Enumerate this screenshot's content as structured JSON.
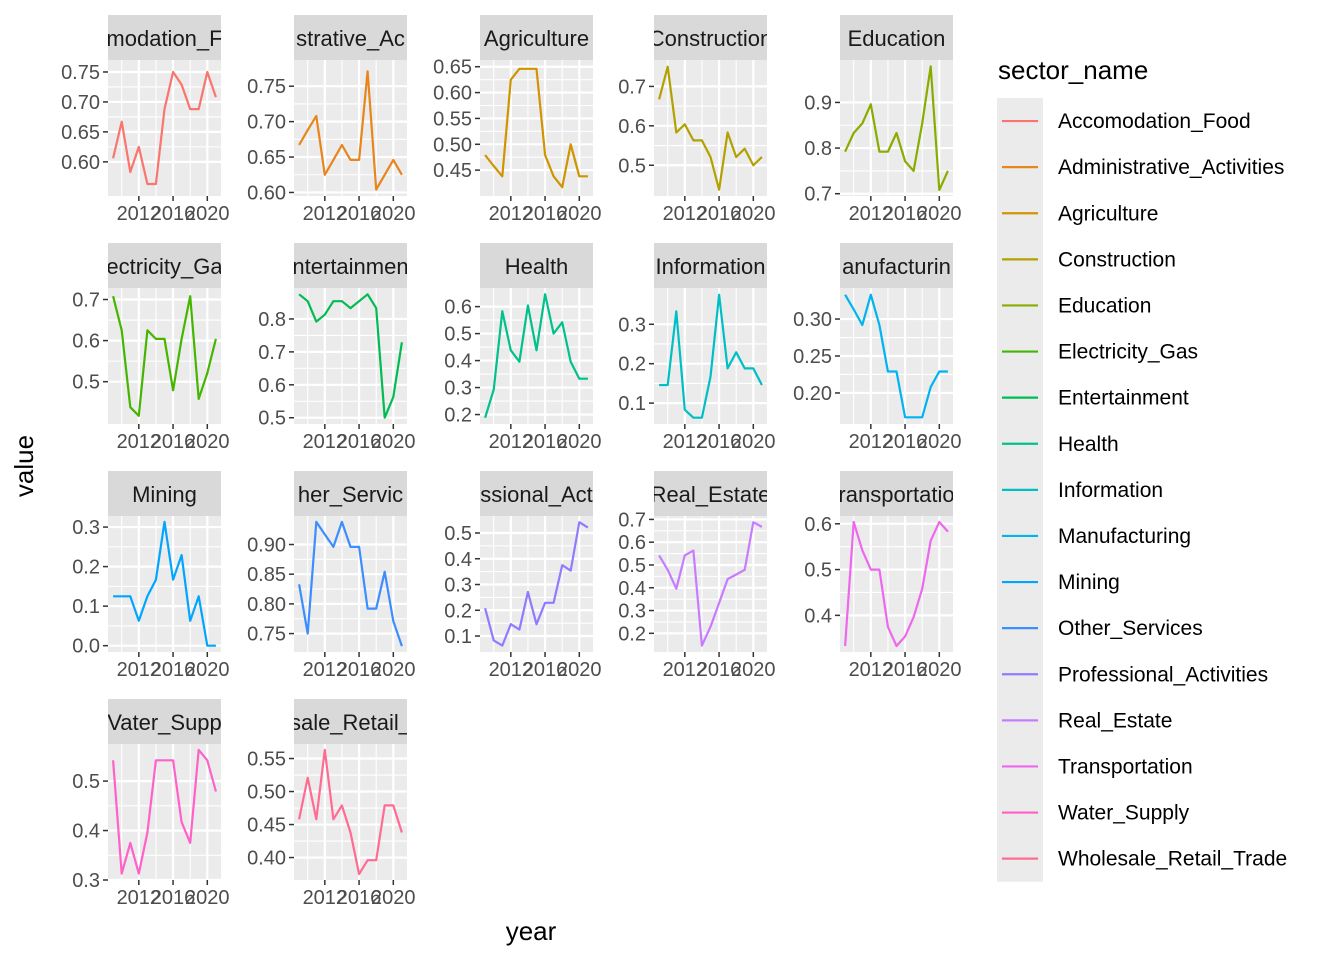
{
  "chart_data": {
    "type": "line",
    "xlabel": "year",
    "ylabel": "value",
    "legend_title": "sector_name",
    "legend_position": "right",
    "x_ticks": [
      2012,
      2016,
      2020
    ],
    "panels": [
      {
        "strip": "Accomodation_Food",
        "strip_shown": "modation_F",
        "color": "#F8766D",
        "x": [
          2009,
          2010,
          2011,
          2012,
          2013,
          2014,
          2015,
          2016,
          2017,
          2018,
          2019,
          2020,
          2021
        ],
        "y": [
          0.606,
          0.667,
          0.583,
          0.625,
          0.563,
          0.563,
          0.688,
          0.75,
          0.729,
          0.688,
          0.688,
          0.75,
          0.708
        ],
        "ylim": [
          0.543,
          0.77
        ],
        "yticks": [
          0.6,
          0.65,
          0.7,
          0.75
        ],
        "ytick_labels": [
          "0.60",
          "0.65",
          "0.70",
          "0.75"
        ]
      },
      {
        "strip": "Administrative_Activities",
        "strip_shown": "strative_Ac",
        "color": "#E7851E",
        "x": [
          2009,
          2010,
          2011,
          2012,
          2013,
          2014,
          2015,
          2016,
          2017,
          2018,
          2019,
          2020,
          2021
        ],
        "y": [
          0.667,
          0.688,
          0.708,
          0.625,
          0.646,
          0.667,
          0.646,
          0.646,
          0.771,
          0.604,
          0.625,
          0.646,
          0.625
        ],
        "ylim": [
          0.595,
          0.787
        ],
        "yticks": [
          0.6,
          0.65,
          0.7,
          0.75
        ],
        "ytick_labels": [
          "0.60",
          "0.65",
          "0.70",
          "0.75"
        ]
      },
      {
        "strip": "Agriculture",
        "strip_shown": "Agriculture",
        "color": "#D09400",
        "x": [
          2009,
          2010,
          2011,
          2012,
          2013,
          2014,
          2015,
          2016,
          2017,
          2018,
          2019,
          2020,
          2021
        ],
        "y": [
          0.479,
          0.458,
          0.438,
          0.625,
          0.646,
          0.646,
          0.646,
          0.479,
          0.438,
          0.417,
          0.5,
          0.438,
          0.438
        ],
        "ylim": [
          0.4,
          0.663
        ],
        "yticks": [
          0.45,
          0.5,
          0.55,
          0.6,
          0.65
        ],
        "ytick_labels": [
          "0.45",
          "0.50",
          "0.55",
          "0.60",
          "0.65"
        ]
      },
      {
        "strip": "Construction",
        "strip_shown": "Construction",
        "color": "#B2A100",
        "x": [
          2009,
          2010,
          2011,
          2012,
          2013,
          2014,
          2015,
          2016,
          2017,
          2018,
          2019,
          2020,
          2021
        ],
        "y": [
          0.667,
          0.75,
          0.583,
          0.604,
          0.563,
          0.563,
          0.521,
          0.438,
          0.583,
          0.521,
          0.542,
          0.5,
          0.521
        ],
        "ylim": [
          0.422,
          0.767
        ],
        "yticks": [
          0.5,
          0.6,
          0.7
        ],
        "ytick_labels": [
          "0.5",
          "0.6",
          "0.7"
        ]
      },
      {
        "strip": "Education",
        "strip_shown": "Education",
        "color": "#89AC00",
        "x": [
          2009,
          2010,
          2011,
          2012,
          2013,
          2014,
          2015,
          2016,
          2017,
          2018,
          2019,
          2020,
          2021
        ],
        "y": [
          0.792,
          0.833,
          0.854,
          0.896,
          0.792,
          0.792,
          0.833,
          0.771,
          0.75,
          0.854,
          0.979,
          0.708,
          0.75
        ],
        "ylim": [
          0.695,
          0.993
        ],
        "yticks": [
          0.7,
          0.8,
          0.9
        ],
        "ytick_labels": [
          "0.7",
          "0.8",
          "0.9"
        ]
      },
      {
        "strip": "Electricity_Gas",
        "strip_shown": "ectricity_Ga",
        "color": "#45B500",
        "x": [
          2009,
          2010,
          2011,
          2012,
          2013,
          2014,
          2015,
          2016,
          2017,
          2018,
          2019,
          2020,
          2021
        ],
        "y": [
          0.708,
          0.625,
          0.438,
          0.417,
          0.625,
          0.604,
          0.604,
          0.479,
          0.604,
          0.708,
          0.458,
          0.521,
          0.604
        ],
        "ylim": [
          0.397,
          0.728
        ],
        "yticks": [
          0.5,
          0.6,
          0.7
        ],
        "ytick_labels": [
          "0.5",
          "0.6",
          "0.7"
        ]
      },
      {
        "strip": "Entertainment",
        "strip_shown": "ntertainmen",
        "color": "#00BC51",
        "x": [
          2009,
          2010,
          2011,
          2012,
          2013,
          2014,
          2015,
          2016,
          2017,
          2018,
          2019,
          2020,
          2021
        ],
        "y": [
          0.875,
          0.854,
          0.792,
          0.813,
          0.854,
          0.854,
          0.833,
          0.854,
          0.875,
          0.833,
          0.5,
          0.563,
          0.729
        ],
        "ylim": [
          0.481,
          0.894
        ],
        "yticks": [
          0.5,
          0.6,
          0.7,
          0.8
        ],
        "ytick_labels": [
          "0.5",
          "0.6",
          "0.7",
          "0.8"
        ]
      },
      {
        "strip": "Health",
        "strip_shown": "Health",
        "color": "#00C08B",
        "x": [
          2009,
          2010,
          2011,
          2012,
          2013,
          2014,
          2015,
          2016,
          2017,
          2018,
          2019,
          2020,
          2021
        ],
        "y": [
          0.188,
          0.292,
          0.583,
          0.438,
          0.396,
          0.604,
          0.438,
          0.646,
          0.5,
          0.542,
          0.396,
          0.333,
          0.333
        ],
        "ylim": [
          0.165,
          0.669
        ],
        "yticks": [
          0.2,
          0.3,
          0.4,
          0.5,
          0.6
        ],
        "ytick_labels": [
          "0.2",
          "0.3",
          "0.4",
          "0.5",
          "0.6"
        ]
      },
      {
        "strip": "Information",
        "strip_shown": "Information",
        "color": "#00BFC4",
        "x": [
          2009,
          2010,
          2011,
          2012,
          2013,
          2014,
          2015,
          2016,
          2017,
          2018,
          2019,
          2020,
          2021
        ],
        "y": [
          0.146,
          0.146,
          0.333,
          0.083,
          0.063,
          0.063,
          0.167,
          0.375,
          0.188,
          0.229,
          0.188,
          0.188,
          0.146
        ],
        "ylim": [
          0.047,
          0.392
        ],
        "yticks": [
          0.1,
          0.2,
          0.3
        ],
        "ytick_labels": [
          "0.1",
          "0.2",
          "0.3"
        ]
      },
      {
        "strip": "Manufacturing",
        "strip_shown": "anufacturin",
        "color": "#00B4EF",
        "x": [
          2009,
          2010,
          2011,
          2012,
          2013,
          2014,
          2015,
          2016,
          2017,
          2018,
          2019,
          2020,
          2021
        ],
        "y": [
          0.333,
          0.313,
          0.292,
          0.333,
          0.292,
          0.229,
          0.229,
          0.167,
          0.167,
          0.167,
          0.208,
          0.229,
          0.229
        ],
        "ylim": [
          0.158,
          0.342
        ],
        "yticks": [
          0.2,
          0.25,
          0.3
        ],
        "ytick_labels": [
          "0.20",
          "0.25",
          "0.30"
        ]
      },
      {
        "strip": "Mining",
        "strip_shown": "Mining",
        "color": "#00A5FF",
        "x": [
          2009,
          2010,
          2011,
          2012,
          2013,
          2014,
          2015,
          2016,
          2017,
          2018,
          2019,
          2020,
          2021
        ],
        "y": [
          0.125,
          0.125,
          0.125,
          0.063,
          0.125,
          0.167,
          0.313,
          0.167,
          0.229,
          0.063,
          0.125,
          0.0,
          0.0
        ],
        "ylim": [
          -0.016,
          0.328
        ],
        "yticks": [
          0.0,
          0.1,
          0.2,
          0.3
        ],
        "ytick_labels": [
          "0.0",
          "0.1",
          "0.2",
          "0.3"
        ]
      },
      {
        "strip": "Other_Services",
        "strip_shown": "her_Servic",
        "color": "#3C8DFF",
        "x": [
          2009,
          2010,
          2011,
          2012,
          2013,
          2014,
          2015,
          2016,
          2017,
          2018,
          2019,
          2020,
          2021
        ],
        "y": [
          0.833,
          0.75,
          0.938,
          0.917,
          0.896,
          0.938,
          0.896,
          0.896,
          0.792,
          0.792,
          0.854,
          0.771,
          0.729
        ],
        "ylim": [
          0.719,
          0.948
        ],
        "yticks": [
          0.75,
          0.8,
          0.85,
          0.9
        ],
        "ytick_labels": [
          "0.75",
          "0.80",
          "0.85",
          "0.90"
        ]
      },
      {
        "strip": "Professional_Activities",
        "strip_shown": "ssional_Act",
        "color": "#8E7BFF",
        "x": [
          2009,
          2010,
          2011,
          2012,
          2013,
          2014,
          2015,
          2016,
          2017,
          2018,
          2019,
          2020,
          2021
        ],
        "y": [
          0.208,
          0.083,
          0.063,
          0.146,
          0.125,
          0.271,
          0.146,
          0.229,
          0.229,
          0.375,
          0.354,
          0.542,
          0.521
        ],
        "ylim": [
          0.038,
          0.566
        ],
        "yticks": [
          0.1,
          0.2,
          0.3,
          0.4,
          0.5
        ],
        "ytick_labels": [
          "0.1",
          "0.2",
          "0.3",
          "0.4",
          "0.5"
        ]
      },
      {
        "strip": "Real_Estate",
        "strip_shown": "Real_Estate",
        "color": "#C77CFF",
        "x": [
          2009,
          2010,
          2011,
          2012,
          2013,
          2014,
          2015,
          2016,
          2017,
          2018,
          2019,
          2020,
          2021
        ],
        "y": [
          0.542,
          0.479,
          0.396,
          0.542,
          0.563,
          0.146,
          0.229,
          0.333,
          0.438,
          0.458,
          0.479,
          0.688,
          0.667
        ],
        "ylim": [
          0.118,
          0.715
        ],
        "yticks": [
          0.2,
          0.3,
          0.4,
          0.5,
          0.6,
          0.7
        ],
        "ytick_labels": [
          "0.2",
          "0.3",
          "0.4",
          "0.5",
          "0.6",
          "0.7"
        ]
      },
      {
        "strip": "Transportation",
        "strip_shown": "ransportatio",
        "color": "#ED68ED",
        "x": [
          2009,
          2010,
          2011,
          2012,
          2013,
          2014,
          2015,
          2016,
          2017,
          2018,
          2019,
          2020,
          2021
        ],
        "y": [
          0.333,
          0.604,
          0.542,
          0.5,
          0.5,
          0.375,
          0.333,
          0.354,
          0.396,
          0.458,
          0.563,
          0.604,
          0.583
        ],
        "ylim": [
          0.32,
          0.617
        ],
        "yticks": [
          0.4,
          0.5,
          0.6
        ],
        "ytick_labels": [
          "0.4",
          "0.5",
          "0.6"
        ]
      },
      {
        "strip": "Water_Supply",
        "strip_shown": "Vater_Supp",
        "color": "#FF61C9",
        "x": [
          2009,
          2010,
          2011,
          2012,
          2013,
          2014,
          2015,
          2016,
          2017,
          2018,
          2019,
          2020,
          2021
        ],
        "y": [
          0.542,
          0.313,
          0.375,
          0.313,
          0.396,
          0.542,
          0.542,
          0.542,
          0.417,
          0.375,
          0.563,
          0.542,
          0.479
        ],
        "ylim": [
          0.3,
          0.575
        ],
        "yticks": [
          0.3,
          0.4,
          0.5
        ],
        "ytick_labels": [
          "0.3",
          "0.4",
          "0.5"
        ]
      },
      {
        "strip": "Wholesale_Retail_Trade",
        "strip_shown": "sale_Retail_",
        "color": "#FF6C91",
        "x": [
          2009,
          2010,
          2011,
          2012,
          2013,
          2014,
          2015,
          2016,
          2017,
          2018,
          2019,
          2020,
          2021
        ],
        "y": [
          0.458,
          0.521,
          0.458,
          0.563,
          0.458,
          0.479,
          0.438,
          0.375,
          0.396,
          0.396,
          0.479,
          0.479,
          0.438
        ],
        "ylim": [
          0.366,
          0.572
        ],
        "yticks": [
          0.4,
          0.45,
          0.5,
          0.55
        ],
        "ytick_labels": [
          "0.40",
          "0.45",
          "0.50",
          "0.55"
        ]
      }
    ],
    "legend": [
      {
        "label": "Accomodation_Food",
        "color": "#F8766D"
      },
      {
        "label": "Administrative_Activities",
        "color": "#E7851E"
      },
      {
        "label": "Agriculture",
        "color": "#D09400"
      },
      {
        "label": "Construction",
        "color": "#B2A100"
      },
      {
        "label": "Education",
        "color": "#89AC00"
      },
      {
        "label": "Electricity_Gas",
        "color": "#45B500"
      },
      {
        "label": "Entertainment",
        "color": "#00BC51"
      },
      {
        "label": "Health",
        "color": "#00C08B"
      },
      {
        "label": "Information",
        "color": "#00BFC4"
      },
      {
        "label": "Manufacturing",
        "color": "#00B4EF"
      },
      {
        "label": "Mining",
        "color": "#00A5FF"
      },
      {
        "label": "Other_Services",
        "color": "#3C8DFF"
      },
      {
        "label": "Professional_Activities",
        "color": "#8E7BFF"
      },
      {
        "label": "Real_Estate",
        "color": "#C77CFF"
      },
      {
        "label": "Transportation",
        "color": "#ED68ED"
      },
      {
        "label": "Water_Supply",
        "color": "#FF61C9"
      },
      {
        "label": "Wholesale_Retail_Trade",
        "color": "#FF6C91"
      }
    ]
  }
}
